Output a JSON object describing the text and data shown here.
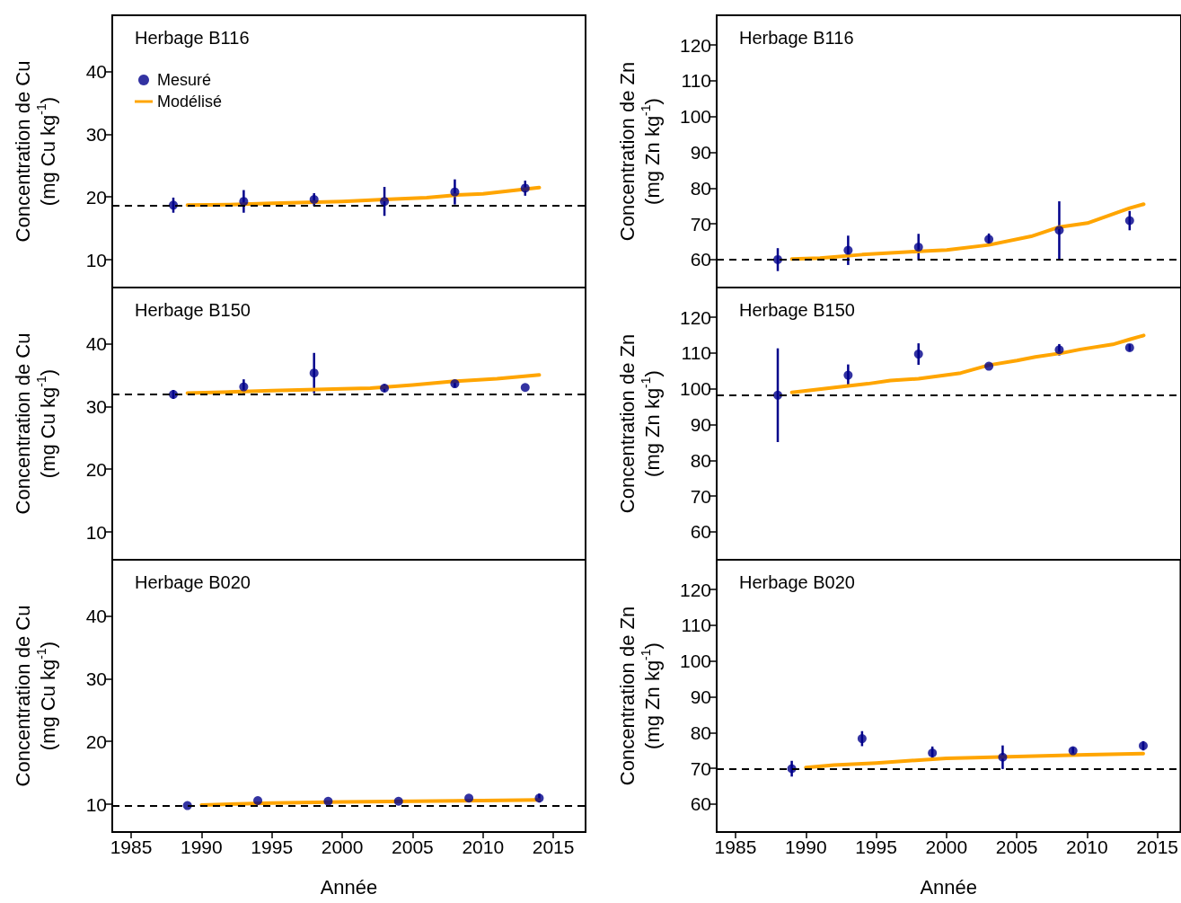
{
  "chart_data": [
    {
      "type": "line",
      "title": "Herbage B116",
      "ylabel": "Concentration de Cu\n(mg Cu kg$^{-1}$)",
      "xlim": [
        1983.66,
        2017.29
      ],
      "ylim": [
        5.6,
        48.9
      ],
      "yticks": [
        10,
        20,
        30,
        40
      ],
      "tick_labels": "y",
      "legend": "top left",
      "series": [
        {
          "name": "Mesuré",
          "type": "scatter",
          "marker": "circle",
          "color": "#00008b",
          "x": [
            1988,
            1993,
            1998,
            2003,
            2008,
            2013
          ],
          "values": [
            18.7,
            19.3,
            19.6,
            19.3,
            20.8,
            21.4
          ],
          "errors": [
            1.2,
            1.8,
            1.0,
            2.3,
            2.0,
            1.2
          ]
        },
        {
          "name": "Modélisé",
          "type": "line",
          "marker": "none",
          "line_style": "solid",
          "color": "#ffa500",
          "x": [
            1989,
            1992,
            1995,
            2000,
            2003,
            2006,
            2008,
            2010,
            2012,
            2014
          ],
          "values": [
            18.7,
            18.8,
            19.0,
            19.3,
            19.6,
            19.9,
            20.3,
            20.5,
            21.0,
            21.5
          ]
        }
      ],
      "ref_lines": [
        {
          "axis": "y",
          "value": 18.7,
          "label": null,
          "color": "#000000",
          "line_style": "dashed"
        }
      ]
    },
    {
      "type": "line",
      "title": "Herbage B116",
      "ylabel": "Concentration de Zn\n(mg Zn kg$^{-1}$)",
      "xlim": [
        1983.66,
        2016.65
      ],
      "ylim": [
        52.2,
        128.3
      ],
      "yticks": [
        60,
        70,
        80,
        90,
        100,
        110,
        120
      ],
      "tick_labels": "y",
      "series": [
        {
          "type": "scatter",
          "marker": "circle",
          "color": "#00008b",
          "x": [
            1988,
            1993,
            1998,
            2003,
            2008,
            2013
          ],
          "values": [
            60.0,
            62.6,
            63.5,
            65.7,
            68.2,
            70.9
          ],
          "errors": [
            3.2,
            4.1,
            3.7,
            1.6,
            8.1,
            2.7
          ]
        },
        {
          "type": "line",
          "marker": "none",
          "line_style": "solid",
          "color": "#ffa500",
          "x": [
            1989,
            1991,
            1994,
            1998,
            2000,
            2003,
            2006,
            2008,
            2010,
            2013,
            2014
          ],
          "values": [
            60.2,
            60.4,
            61.4,
            62.3,
            62.7,
            64.1,
            66.5,
            69.1,
            70.2,
            74.4,
            75.5
          ]
        }
      ],
      "ref_lines": [
        {
          "axis": "y",
          "value": 60.0,
          "label": null,
          "color": "#000000",
          "line_style": "dashed"
        }
      ]
    },
    {
      "type": "line",
      "title": "Herbage B150",
      "ylabel": "Concentration de Cu\n(mg Cu kg$^{-1}$)",
      "xlim": [
        1983.66,
        2017.29
      ],
      "ylim": [
        5.6,
        48.9
      ],
      "yticks": [
        10,
        20,
        30,
        40
      ],
      "tick_labels": "y",
      "series": [
        {
          "type": "scatter",
          "marker": "circle",
          "color": "#00008b",
          "x": [
            1988,
            1993,
            1998,
            2003,
            2008,
            2013
          ],
          "values": [
            31.9,
            33.1,
            35.3,
            32.9,
            33.6,
            33.0
          ],
          "errors": [
            0.7,
            1.2,
            3.2,
            0.6,
            0.6,
            null
          ]
        },
        {
          "type": "line",
          "marker": "none",
          "line_style": "solid",
          "color": "#ffa500",
          "x": [
            1989,
            1995,
            2000,
            2002,
            2005,
            2008,
            2011,
            2014
          ],
          "values": [
            32.1,
            32.5,
            32.8,
            32.9,
            33.4,
            34.0,
            34.4,
            35.0
          ]
        }
      ],
      "ref_lines": [
        {
          "axis": "y",
          "value": 31.9,
          "label": null,
          "color": "#000000",
          "line_style": "dashed"
        }
      ]
    },
    {
      "type": "line",
      "title": "Herbage B150",
      "ylabel": "Concentration de Zn\n(mg Zn kg$^{-1}$)",
      "xlim": [
        1983.66,
        2016.65
      ],
      "ylim": [
        52.2,
        128.3
      ],
      "yticks": [
        60,
        70,
        80,
        90,
        100,
        110,
        120
      ],
      "tick_labels": "y",
      "series": [
        {
          "type": "scatter",
          "marker": "circle",
          "color": "#00008b",
          "x": [
            1988,
            1993,
            1998,
            2003,
            2008,
            2013
          ],
          "values": [
            98.2,
            103.8,
            109.7,
            106.3,
            110.9,
            111.5
          ],
          "errors": [
            13.1,
            3.0,
            3.0,
            null,
            1.6,
            0.9
          ]
        },
        {
          "type": "line",
          "marker": "none",
          "line_style": "solid",
          "color": "#ffa500",
          "x": [
            1989,
            1993,
            1994.4,
            1996,
            1998,
            2001,
            2003,
            2005,
            2006.3,
            2008.2,
            2009.5,
            2011.8,
            2013,
            2014
          ],
          "values": [
            99.0,
            100.8,
            101.4,
            102.3,
            102.8,
            104.4,
            106.6,
            107.9,
            108.9,
            110.0,
            111.0,
            112.4,
            113.8,
            114.9
          ]
        }
      ],
      "ref_lines": [
        {
          "axis": "y",
          "value": 98.2,
          "label": null,
          "color": "#000000",
          "line_style": "dashed"
        }
      ]
    },
    {
      "type": "line",
      "title": "Herbage B020",
      "ylabel": "Concentration de Cu\n(mg Cu kg$^{-1}$)",
      "xlabel": "Année",
      "xlim": [
        1983.66,
        2017.29
      ],
      "ylim": [
        5.6,
        48.9
      ],
      "xticks": [
        1985,
        1990,
        1995,
        2000,
        2005,
        2010,
        2015
      ],
      "yticks": [
        10,
        20,
        30,
        40
      ],
      "series": [
        {
          "type": "scatter",
          "marker": "circle",
          "color": "#00008b",
          "x": [
            1989,
            1994,
            1999,
            2004,
            2009,
            2014
          ],
          "values": [
            9.8,
            10.6,
            10.5,
            10.5,
            11.0,
            11.0
          ],
          "errors": [
            null,
            null,
            null,
            null,
            null,
            0.7
          ]
        },
        {
          "type": "line",
          "marker": "none",
          "line_style": "solid",
          "color": "#ffa500",
          "x": [
            1990,
            1995,
            2000,
            2005,
            2010,
            2014
          ],
          "values": [
            9.9,
            10.2,
            10.4,
            10.5,
            10.6,
            10.7
          ]
        }
      ],
      "ref_lines": [
        {
          "axis": "y",
          "value": 9.8,
          "label": null,
          "color": "#000000",
          "line_style": "dashed"
        }
      ]
    },
    {
      "type": "line",
      "title": "Herbage B020",
      "ylabel": "Concentration de Zn\n(mg Zn kg$^{-1}$)",
      "xlabel": "Année",
      "xlim": [
        1983.66,
        2016.65
      ],
      "ylim": [
        52.2,
        128.3
      ],
      "xticks": [
        1985,
        1990,
        1995,
        2000,
        2005,
        2010,
        2015
      ],
      "yticks": [
        60,
        70,
        80,
        90,
        100,
        110,
        120
      ],
      "series": [
        {
          "type": "scatter",
          "marker": "circle",
          "color": "#00008b",
          "x": [
            1989,
            1994,
            1999,
            2004,
            2009,
            2014
          ],
          "values": [
            69.9,
            78.3,
            74.3,
            73.1,
            74.9,
            76.3
          ],
          "errors": [
            2.2,
            2.1,
            1.8,
            3.3,
            1.0,
            1.3
          ]
        },
        {
          "type": "line",
          "marker": "none",
          "line_style": "solid",
          "color": "#ffa500",
          "x": [
            1990,
            1992,
            1995,
            2000,
            2002,
            2005,
            2010,
            2014
          ],
          "values": [
            70.2,
            70.9,
            71.5,
            72.8,
            73.0,
            73.3,
            73.8,
            74.1
          ]
        }
      ],
      "ref_lines": [
        {
          "axis": "y",
          "value": 69.9,
          "label": null,
          "color": "#000000",
          "line_style": "dashed"
        }
      ]
    }
  ]
}
